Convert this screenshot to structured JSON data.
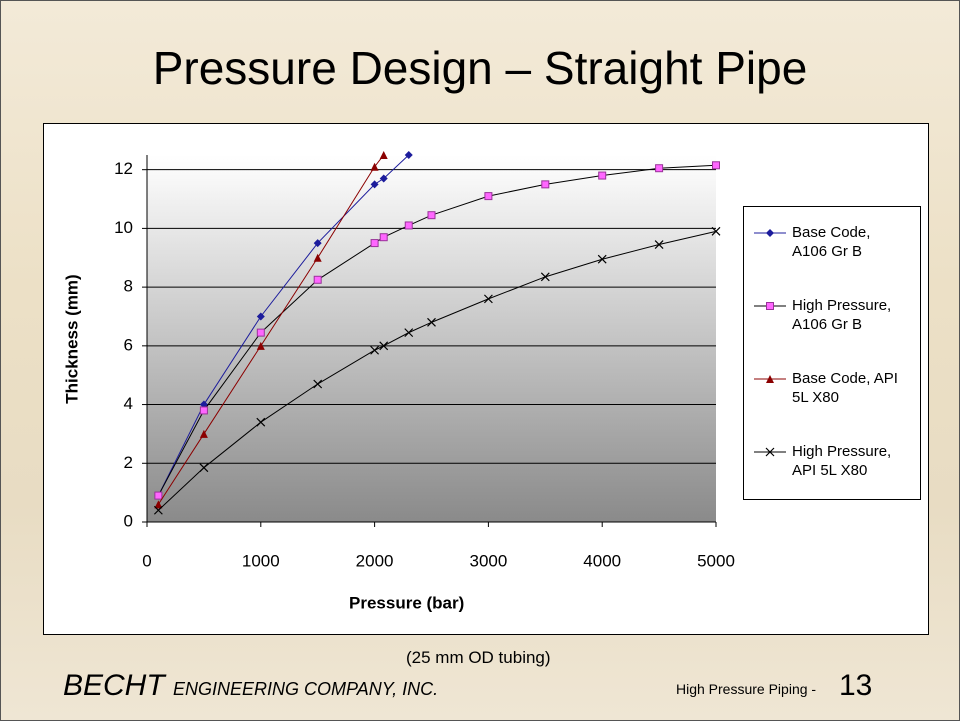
{
  "slide_title": "Pressure Design – Straight Pipe",
  "chart_data": {
    "type": "line",
    "x_label": "Pressure (bar)",
    "y_label": "Thickness (mm)",
    "xlim": [
      0,
      5000
    ],
    "xticks": [
      0,
      1000,
      2000,
      3000,
      4000,
      5000
    ],
    "ylim": [
      0,
      12.5
    ],
    "yticks": [
      0,
      2,
      4,
      6,
      8,
      10,
      12
    ],
    "grid": true,
    "legend": "right",
    "series": [
      {
        "name": "Base Code, A106 Gr B",
        "color": "#1c1c9c",
        "marker": "diamond",
        "x": [
          100,
          500,
          1000,
          1500,
          2000,
          2080,
          2300
        ],
        "values": [
          0.9,
          4.0,
          7.0,
          9.5,
          11.5,
          11.7,
          12.5
        ]
      },
      {
        "name": "High Pressure, A106 Gr B",
        "color": "#ff66ff",
        "marker": "square",
        "x": [
          100,
          500,
          1000,
          1500,
          2000,
          2080,
          2300,
          2500,
          3000,
          3500,
          4000,
          4500,
          5000
        ],
        "values": [
          0.9,
          3.8,
          6.45,
          8.25,
          9.5,
          9.7,
          10.1,
          10.45,
          11.1,
          11.5,
          11.8,
          12.05,
          12.15
        ]
      },
      {
        "name": "Base Code, API 5L X80",
        "color": "#8b0000",
        "marker": "triangle",
        "x": [
          100,
          500,
          1000,
          1500,
          2000,
          2080
        ],
        "values": [
          0.6,
          3.0,
          6.0,
          9.0,
          12.1,
          12.5
        ]
      },
      {
        "name": "High Pressure, API 5L X80",
        "color": "#000000",
        "marker": "x",
        "x": [
          100,
          500,
          1000,
          1500,
          2000,
          2080,
          2300,
          2500,
          3000,
          3500,
          4000,
          4500,
          5000
        ],
        "values": [
          0.4,
          1.85,
          3.4,
          4.7,
          5.85,
          6.0,
          6.45,
          6.8,
          7.6,
          8.35,
          8.95,
          9.45,
          9.9
        ]
      }
    ]
  },
  "note": "(25 mm OD tubing)",
  "footer": {
    "company": "BECHT",
    "company_rest": "ENGINEERING COMPANY, INC.",
    "deck": "High Pressure Piping -",
    "page": "13"
  }
}
